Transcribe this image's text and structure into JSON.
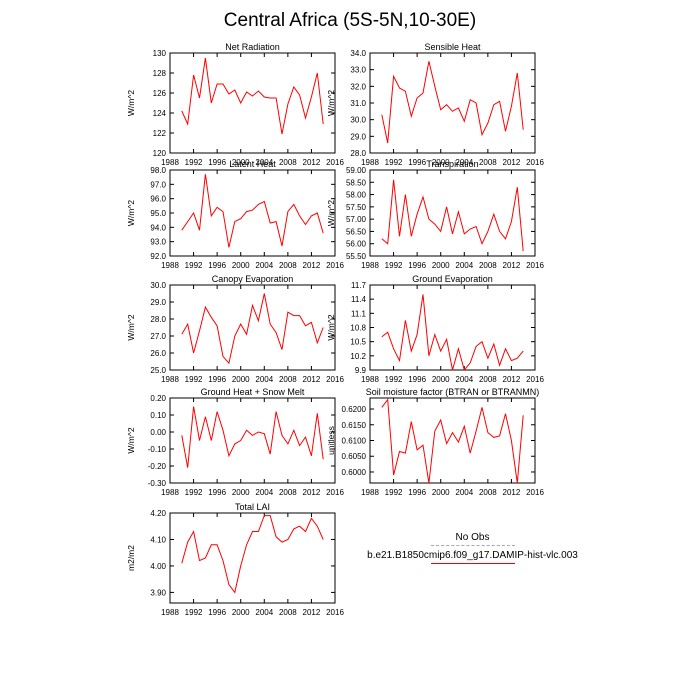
{
  "figure": {
    "title": "Central Africa (5S-5N,10-30E)"
  },
  "legend": {
    "items": [
      {
        "label": "No Obs",
        "color": "#9aa0ff",
        "style": "dashed"
      },
      {
        "label": "b.e21.B1850cmip6.f09_g17.DAMIP-hist-vlc.003",
        "color": "#ff0000",
        "style": "solid"
      }
    ]
  },
  "chart_data": [
    {
      "type": "line",
      "title": "Net Radiation",
      "ylabel": "W/m^2",
      "xlim": [
        1988,
        2016
      ],
      "ylim": [
        120,
        130
      ],
      "xticks": [
        "1988",
        "1992",
        "1996",
        "2000",
        "2004",
        "2008",
        "2012",
        "2016"
      ],
      "yticks": [
        "120",
        "122",
        "124",
        "126",
        "128",
        "130"
      ],
      "x": [
        1990,
        1991,
        1992,
        1993,
        1994,
        1995,
        1996,
        1997,
        1998,
        1999,
        2000,
        2001,
        2002,
        2003,
        2004,
        2005,
        2006,
        2007,
        2008,
        2009,
        2010,
        2011,
        2012,
        2013,
        2014
      ],
      "series": [
        {
          "name": "b.e21.B1850cmip6.f09_g17.DAMIP-hist-vlc.003",
          "color": "#ff0000",
          "values": [
            124.2,
            122.9,
            127.8,
            125.5,
            129.5,
            125.0,
            126.9,
            126.9,
            125.9,
            126.3,
            125.0,
            126.1,
            125.7,
            126.2,
            125.6,
            125.5,
            125.5,
            121.9,
            124.9,
            126.6,
            125.8,
            123.5,
            125.6,
            128.0,
            122.9
          ]
        }
      ]
    },
    {
      "type": "line",
      "title": "Sensible Heat",
      "ylabel": "W/m^2",
      "xlim": [
        1988,
        2016
      ],
      "ylim": [
        28,
        34
      ],
      "xticks": [
        "1988",
        "1992",
        "1996",
        "2000",
        "2004",
        "2008",
        "2012",
        "2016"
      ],
      "yticks": [
        "28.0",
        "29.0",
        "30.0",
        "31.0",
        "32.0",
        "33.0",
        "34.0"
      ],
      "x": [
        1990,
        1991,
        1992,
        1993,
        1994,
        1995,
        1996,
        1997,
        1998,
        1999,
        2000,
        2001,
        2002,
        2003,
        2004,
        2005,
        2006,
        2007,
        2008,
        2009,
        2010,
        2011,
        2012,
        2013,
        2014
      ],
      "series": [
        {
          "name": "b.e21.B1850cmip6.f09_g17.DAMIP-hist-vlc.003",
          "color": "#ff0000",
          "values": [
            30.3,
            28.6,
            32.6,
            31.9,
            31.7,
            30.2,
            31.3,
            31.6,
            33.5,
            32.0,
            30.6,
            30.9,
            30.5,
            30.7,
            29.9,
            31.2,
            31.0,
            29.1,
            29.8,
            30.9,
            31.1,
            29.3,
            30.8,
            32.8,
            29.4
          ]
        }
      ]
    },
    {
      "type": "line",
      "title": "Latent Heat",
      "ylabel": "W/m^2",
      "xlim": [
        1988,
        2016
      ],
      "ylim": [
        92,
        98
      ],
      "xticks": [
        "1988",
        "1992",
        "1996",
        "2000",
        "2004",
        "2008",
        "2012",
        "2016"
      ],
      "yticks": [
        "92.0",
        "93.0",
        "94.0",
        "95.0",
        "96.0",
        "97.0",
        "98.0"
      ],
      "x": [
        1990,
        1991,
        1992,
        1993,
        1994,
        1995,
        1996,
        1997,
        1998,
        1999,
        2000,
        2001,
        2002,
        2003,
        2004,
        2005,
        2006,
        2007,
        2008,
        2009,
        2010,
        2011,
        2012,
        2013,
        2014
      ],
      "series": [
        {
          "name": "b.e21.B1850cmip6.f09_g17.DAMIP-hist-vlc.003",
          "color": "#ff0000",
          "values": [
            93.8,
            94.4,
            95.0,
            93.8,
            97.7,
            94.8,
            95.4,
            95.1,
            92.6,
            94.4,
            94.6,
            95.1,
            95.2,
            95.6,
            95.8,
            94.3,
            94.4,
            92.7,
            95.1,
            95.6,
            94.8,
            94.2,
            94.8,
            95.0,
            93.6
          ]
        }
      ]
    },
    {
      "type": "line",
      "title": "Transpiration",
      "ylabel": "W/m^2",
      "xlim": [
        1988,
        2016
      ],
      "ylim": [
        55.5,
        59
      ],
      "xticks": [
        "1988",
        "1992",
        "1996",
        "2000",
        "2004",
        "2008",
        "2012",
        "2016"
      ],
      "yticks": [
        "55.50",
        "56.00",
        "56.50",
        "57.00",
        "57.50",
        "58.00",
        "58.50",
        "59.00"
      ],
      "x": [
        1990,
        1991,
        1992,
        1993,
        1994,
        1995,
        1996,
        1997,
        1998,
        1999,
        2000,
        2001,
        2002,
        2003,
        2004,
        2005,
        2006,
        2007,
        2008,
        2009,
        2010,
        2011,
        2012,
        2013,
        2014
      ],
      "series": [
        {
          "name": "b.e21.B1850cmip6.f09_g17.DAMIP-hist-vlc.003",
          "color": "#ff0000",
          "values": [
            56.2,
            56.0,
            58.6,
            56.3,
            58.0,
            56.3,
            57.2,
            57.9,
            57.0,
            56.8,
            56.5,
            57.5,
            56.4,
            57.3,
            56.4,
            56.6,
            56.7,
            56.0,
            56.5,
            57.2,
            56.5,
            56.2,
            56.9,
            58.3,
            55.7
          ]
        }
      ]
    },
    {
      "type": "line",
      "title": "Canopy Evaporation",
      "ylabel": "W/m^2",
      "xlim": [
        1988,
        2016
      ],
      "ylim": [
        25,
        30
      ],
      "xticks": [
        "1988",
        "1992",
        "1996",
        "2000",
        "2004",
        "2008",
        "2012",
        "2016"
      ],
      "yticks": [
        "25.0",
        "26.0",
        "27.0",
        "28.0",
        "29.0",
        "30.0"
      ],
      "x": [
        1990,
        1991,
        1992,
        1993,
        1994,
        1995,
        1996,
        1997,
        1998,
        1999,
        2000,
        2001,
        2002,
        2003,
        2004,
        2005,
        2006,
        2007,
        2008,
        2009,
        2010,
        2011,
        2012,
        2013,
        2014
      ],
      "series": [
        {
          "name": "b.e21.B1850cmip6.f09_g17.DAMIP-hist-vlc.003",
          "color": "#ff0000",
          "values": [
            27.1,
            27.7,
            26.0,
            27.3,
            28.7,
            28.1,
            27.6,
            25.8,
            25.4,
            27.0,
            27.7,
            27.1,
            28.8,
            27.9,
            29.5,
            27.7,
            27.2,
            26.2,
            28.4,
            28.2,
            28.2,
            27.6,
            27.8,
            26.6,
            27.5
          ]
        }
      ]
    },
    {
      "type": "line",
      "title": "Ground Evaporation",
      "ylabel": "W/m^2",
      "xlim": [
        1988,
        2016
      ],
      "ylim": [
        9.9,
        11.7
      ],
      "xticks": [
        "1988",
        "1992",
        "1996",
        "2000",
        "2004",
        "2008",
        "2012",
        "2016"
      ],
      "yticks": [
        "9.9",
        "10.2",
        "10.5",
        "10.8",
        "11.1",
        "11.4",
        "11.7"
      ],
      "x": [
        1990,
        1991,
        1992,
        1993,
        1994,
        1995,
        1996,
        1997,
        1998,
        1999,
        2000,
        2001,
        2002,
        2003,
        2004,
        2005,
        2006,
        2007,
        2008,
        2009,
        2010,
        2011,
        2012,
        2013,
        2014
      ],
      "series": [
        {
          "name": "b.e21.B1850cmip6.f09_g17.DAMIP-hist-vlc.003",
          "color": "#ff0000",
          "values": [
            10.6,
            10.7,
            10.35,
            10.1,
            10.95,
            10.3,
            10.65,
            11.5,
            10.2,
            10.65,
            10.3,
            10.55,
            9.9,
            10.35,
            9.9,
            10.05,
            10.4,
            10.5,
            10.15,
            10.45,
            10.0,
            10.35,
            10.1,
            10.15,
            10.3
          ]
        }
      ]
    },
    {
      "type": "line",
      "title": "Ground Heat + Snow Melt",
      "ylabel": "W/m^2",
      "xlim": [
        1988,
        2016
      ],
      "ylim": [
        -0.3,
        0.2
      ],
      "xticks": [
        "1988",
        "1992",
        "1996",
        "2000",
        "2004",
        "2008",
        "2012",
        "2016"
      ],
      "yticks": [
        "-0.30",
        "-0.20",
        "-0.10",
        "0.00",
        "0.10",
        "0.20"
      ],
      "x": [
        1990,
        1991,
        1992,
        1993,
        1994,
        1995,
        1996,
        1997,
        1998,
        1999,
        2000,
        2001,
        2002,
        2003,
        2004,
        2005,
        2006,
        2007,
        2008,
        2009,
        2010,
        2011,
        2012,
        2013,
        2014
      ],
      "series": [
        {
          "name": "b.e21.B1850cmip6.f09_g17.DAMIP-hist-vlc.003",
          "color": "#ff0000",
          "values": [
            -0.02,
            -0.21,
            0.15,
            -0.05,
            0.09,
            -0.05,
            0.12,
            0.01,
            -0.14,
            -0.07,
            -0.05,
            0.01,
            -0.02,
            0.0,
            -0.01,
            -0.13,
            0.12,
            -0.02,
            -0.07,
            0.01,
            -0.08,
            -0.03,
            -0.14,
            0.11,
            -0.16
          ]
        }
      ]
    },
    {
      "type": "line",
      "title": "Soil moisture factor (BTRAN or BTRANMN)",
      "ylabel": "unitless",
      "xlim": [
        1988,
        2016
      ],
      "ylim": [
        0.5965,
        0.6235
      ],
      "xticks": [
        "1988",
        "1992",
        "1996",
        "2000",
        "2004",
        "2008",
        "2012",
        "2016"
      ],
      "yticks": [
        "0.6000",
        "0.6050",
        "0.6100",
        "0.6150",
        "0.6200"
      ],
      "x": [
        1990,
        1991,
        1992,
        1993,
        1994,
        1995,
        1996,
        1997,
        1998,
        1999,
        2000,
        2001,
        2002,
        2003,
        2004,
        2005,
        2006,
        2007,
        2008,
        2009,
        2010,
        2011,
        2012,
        2013,
        2014
      ],
      "series": [
        {
          "name": "b.e21.B1850cmip6.f09_g17.DAMIP-hist-vlc.003",
          "color": "#ff0000",
          "values": [
            0.6205,
            0.623,
            0.599,
            0.6065,
            0.606,
            0.616,
            0.607,
            0.6085,
            0.5965,
            0.613,
            0.6165,
            0.609,
            0.6125,
            0.6095,
            0.6145,
            0.606,
            0.613,
            0.6205,
            0.6125,
            0.611,
            0.6115,
            0.6185,
            0.61,
            0.5965,
            0.618
          ]
        }
      ]
    },
    {
      "type": "line",
      "title": "Total LAI",
      "ylabel": "m2/m2",
      "xlim": [
        1988,
        2016
      ],
      "ylim": [
        3.86,
        4.2
      ],
      "xticks": [
        "1988",
        "1992",
        "1996",
        "2000",
        "2004",
        "2008",
        "2012",
        "2016"
      ],
      "yticks": [
        "3.90",
        "4.00",
        "4.10",
        "4.20"
      ],
      "x": [
        1990,
        1991,
        1992,
        1993,
        1994,
        1995,
        1996,
        1997,
        1998,
        1999,
        2000,
        2001,
        2002,
        2003,
        2004,
        2005,
        2006,
        2007,
        2008,
        2009,
        2010,
        2011,
        2012,
        2013,
        2014
      ],
      "series": [
        {
          "name": "b.e21.B1850cmip6.f09_g17.DAMIP-hist-vlc.003",
          "color": "#ff0000",
          "values": [
            4.01,
            4.09,
            4.13,
            4.02,
            4.03,
            4.08,
            4.08,
            4.02,
            3.93,
            3.9,
            4.0,
            4.08,
            4.13,
            4.13,
            4.19,
            4.19,
            4.11,
            4.09,
            4.1,
            4.14,
            4.15,
            4.13,
            4.18,
            4.15,
            4.1
          ]
        }
      ]
    }
  ]
}
